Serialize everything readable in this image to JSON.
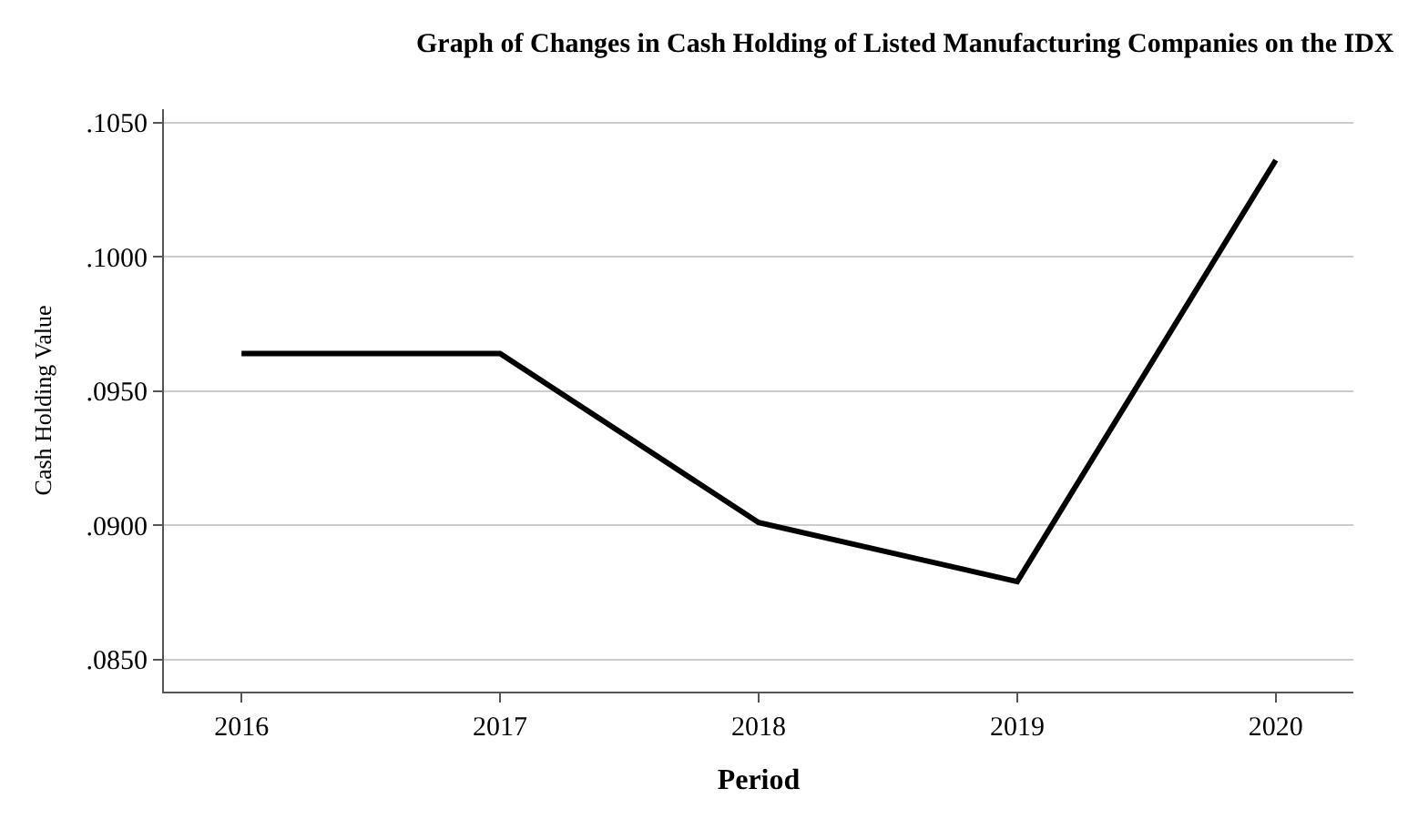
{
  "chart_data": {
    "type": "line",
    "title": "Graph of Changes in Cash Holding of Listed Manufacturing Companies on the IDX",
    "xlabel": "Period",
    "ylabel": "Cash Holding Value",
    "categories": [
      "2016",
      "2017",
      "2018",
      "2019",
      "2020"
    ],
    "series": [
      {
        "color": "#000000",
        "values": [
          0.0964,
          0.0964,
          0.0901,
          0.0879,
          0.1036
        ]
      }
    ],
    "ylim": [
      0.0838,
      0.1055
    ],
    "yticks": [
      {
        "value": 0.085,
        "label": ".0850"
      },
      {
        "value": 0.09,
        "label": ".0900"
      },
      {
        "value": 0.095,
        "label": ".0950"
      },
      {
        "value": 0.1,
        "label": ".1000"
      },
      {
        "value": 0.105,
        "label": ".1050"
      }
    ],
    "grid": "y",
    "legend": false,
    "marker": "none",
    "line_style": "solid"
  }
}
